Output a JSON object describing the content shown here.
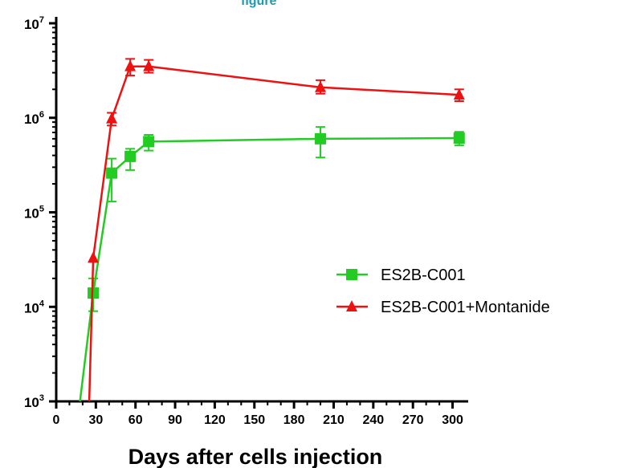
{
  "chart_data": {
    "type": "line",
    "title": "",
    "xlabel": "Days after cells injection",
    "ylabel": "",
    "xlim": [
      0,
      310
    ],
    "ylim": [
      1000,
      10000000
    ],
    "y_scale": "log",
    "x_ticks": [
      "0",
      "30",
      "60",
      "90",
      "120",
      "150",
      "180",
      "210",
      "240",
      "270",
      "300"
    ],
    "y_ticks": [
      {
        "value": 1000,
        "base": "10",
        "exp": "3"
      },
      {
        "value": 10000,
        "base": "10",
        "exp": "4"
      },
      {
        "value": 100000,
        "base": "10",
        "exp": "5"
      },
      {
        "value": 1000000,
        "base": "10",
        "exp": "6"
      },
      {
        "value": 10000000,
        "base": "10",
        "exp": "7"
      }
    ],
    "legend_position": "right",
    "series": [
      {
        "name": "ES2B-C001",
        "color": "#22cc22",
        "marker": "square",
        "points": [
          {
            "x": 28,
            "y": 14000,
            "err_low": 9000,
            "err_high": 20000
          },
          {
            "x": 42,
            "y": 260000,
            "err_low": 130000,
            "err_high": 370000
          },
          {
            "x": 56,
            "y": 390000,
            "err_low": 280000,
            "err_high": 470000
          },
          {
            "x": 70,
            "y": 560000,
            "err_low": 450000,
            "err_high": 660000
          },
          {
            "x": 200,
            "y": 600000,
            "err_low": 380000,
            "err_high": 800000
          },
          {
            "x": 305,
            "y": 610000,
            "err_low": 510000,
            "err_high": 710000
          }
        ],
        "low_start": {
          "x": 18,
          "y": 1000
        }
      },
      {
        "name": "ES2B-C001+Montanide",
        "color": "#ee1111",
        "marker": "triangle",
        "points": [
          {
            "x": 28,
            "y": 33000
          },
          {
            "x": 42,
            "y": 980000,
            "err_low": 830000,
            "err_high": 1130000
          },
          {
            "x": 56,
            "y": 3500000,
            "err_low": 2800000,
            "err_high": 4200000
          },
          {
            "x": 70,
            "y": 3500000,
            "err_low": 3000000,
            "err_high": 4100000
          },
          {
            "x": 200,
            "y": 2100000,
            "err_low": 1800000,
            "err_high": 2500000
          },
          {
            "x": 305,
            "y": 1750000,
            "err_low": 1500000,
            "err_high": 2000000
          }
        ],
        "low_start": {
          "x": 25,
          "y": 1000
        }
      }
    ]
  }
}
